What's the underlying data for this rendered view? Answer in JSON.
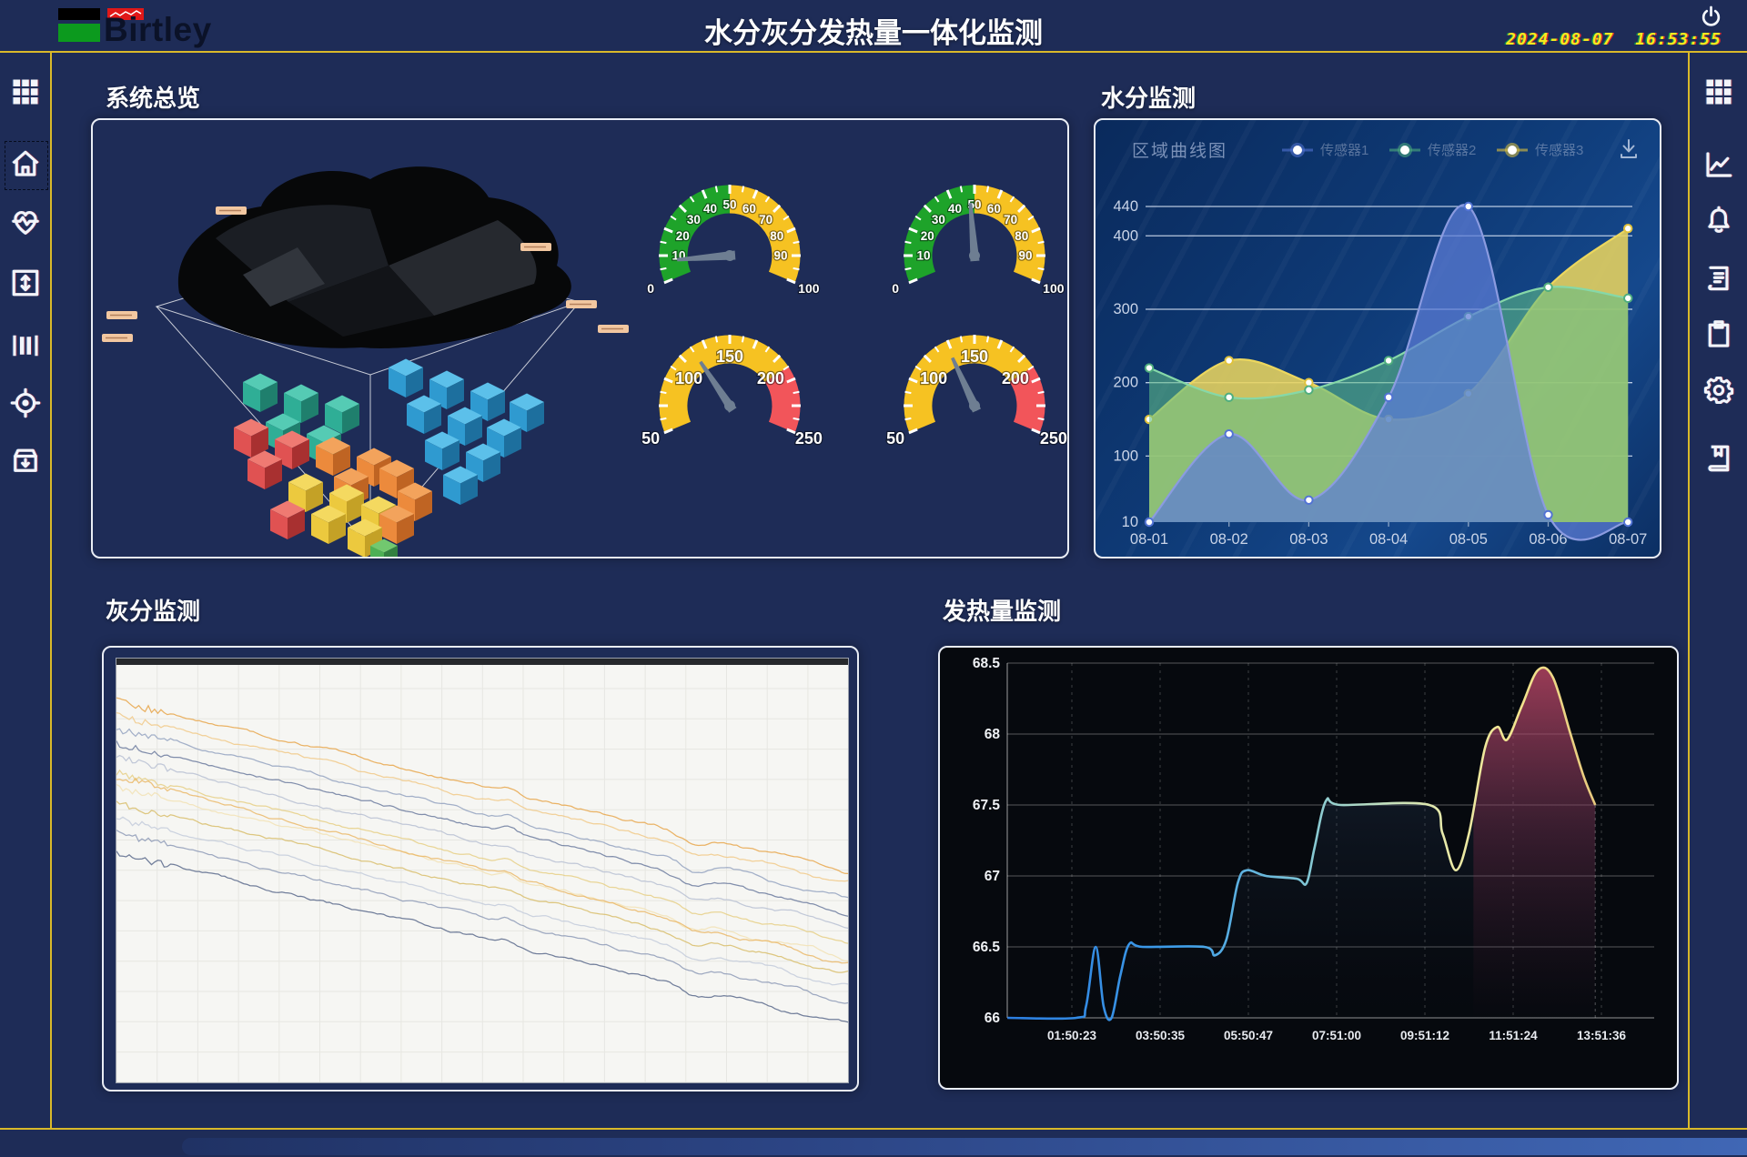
{
  "header": {
    "logo_text": "Birtley",
    "title": "水分灰分发热量一体化监测",
    "date": "2024-08-07",
    "time": "16:53:55",
    "power_icon": "power-icon"
  },
  "left_sidebar": {
    "items": [
      {
        "icon": "grid",
        "name": "apps",
        "active": false
      },
      {
        "icon": "home",
        "name": "home",
        "active": true
      },
      {
        "icon": "heart-pulse",
        "name": "health",
        "active": false
      },
      {
        "icon": "resize-vertical",
        "name": "levels",
        "active": false
      },
      {
        "icon": "bars",
        "name": "gates",
        "active": false
      },
      {
        "icon": "target",
        "name": "calibration",
        "active": false
      },
      {
        "icon": "archive-down",
        "name": "storage",
        "active": false
      }
    ]
  },
  "right_sidebar": {
    "items": [
      {
        "icon": "grid",
        "name": "apps"
      },
      {
        "icon": "line-chart",
        "name": "trends"
      },
      {
        "icon": "bell",
        "name": "alarms"
      },
      {
        "icon": "document",
        "name": "reports"
      },
      {
        "icon": "clipboard",
        "name": "tasks"
      },
      {
        "icon": "gear",
        "name": "settings"
      },
      {
        "icon": "book",
        "name": "records"
      }
    ]
  },
  "panels": {
    "overview": {
      "title": "系统总览"
    },
    "moisture": {
      "title": "水分监测",
      "chart_label": "区域曲线图",
      "download_icon": "download-icon"
    },
    "ash": {
      "title": "灰分监测"
    },
    "calorific": {
      "title": "发热量监测"
    }
  },
  "colors": {
    "accent_yellow": "#d9b92a",
    "clock_yellow": "#f3eb1f",
    "page_bg": "#1e2c57",
    "panel_border": "#e9edf5",
    "gauge_green": "#1ea32a",
    "gauge_yellow": "#f6c222",
    "gauge_red": "#f2555a",
    "needle_gray": "#6e7e92"
  },
  "chart_data": [
    {
      "id": "moisture_area",
      "type": "area",
      "title": "区域曲线图",
      "legend_position": "top-right",
      "grid": true,
      "categories": [
        "08-01",
        "08-02",
        "08-03",
        "08-04",
        "08-05",
        "08-06",
        "08-07"
      ],
      "yticks": [
        10,
        100,
        200,
        300,
        400,
        440
      ],
      "ylim": [
        10,
        455
      ],
      "series": [
        {
          "name": "传感器1",
          "color": "#8b9be0",
          "fill": "rgba(93,125,215,0.72)",
          "marker": "#5273d4",
          "values": [
            10,
            130,
            40,
            180,
            440,
            20,
            10
          ]
        },
        {
          "name": "传感器2",
          "color": "#86d8a8",
          "fill": "rgba(95,190,135,0.58)",
          "marker": "#4fae7e",
          "values": [
            220,
            180,
            190,
            230,
            290,
            330,
            315
          ]
        },
        {
          "name": "传感器3",
          "color": "#ecd75e",
          "fill": "rgba(232,212,95,0.88)",
          "marker": "#e0c23c",
          "values": [
            150,
            230,
            200,
            150,
            185,
            330,
            410
          ]
        }
      ]
    },
    {
      "id": "ash_lines",
      "type": "line",
      "title": "灰分监测",
      "note": "multi-series noisy descending trend lines on white background",
      "bumps": [
        {
          "t": 0.535,
          "amp": -5,
          "w": 0.016
        },
        {
          "t": 0.79,
          "amp": 9,
          "w": 0.025
        }
      ],
      "series": [
        {
          "color": "#e8a64a",
          "start": 0.1,
          "end": 0.5
        },
        {
          "color": "#f1c987",
          "start": 0.13,
          "end": 0.53
        },
        {
          "color": "#93a2bf",
          "start": 0.165,
          "end": 0.565
        },
        {
          "color": "#6b7a9d",
          "start": 0.2,
          "end": 0.6
        },
        {
          "color": "#b7c0d2",
          "start": 0.235,
          "end": 0.635
        },
        {
          "color": "#e6cf85",
          "start": 0.27,
          "end": 0.67
        },
        {
          "color": "#f2e2b4",
          "start": 0.305,
          "end": 0.705
        },
        {
          "color": "#d8bd6a",
          "start": 0.34,
          "end": 0.74
        },
        {
          "color": "#c3cbdb",
          "start": 0.375,
          "end": 0.775
        },
        {
          "color": "#8d9ab6",
          "start": 0.41,
          "end": 0.81
        },
        {
          "color": "#eab766",
          "start": 0.28,
          "end": 0.72
        },
        {
          "color": "#58678a",
          "start": 0.46,
          "end": 0.86
        }
      ]
    },
    {
      "id": "calorific_line",
      "type": "line",
      "title": "发热量监测",
      "categories": [
        "01:50:23",
        "03:50:35",
        "05:50:47",
        "07:51:00",
        "09:51:12",
        "11:51:24",
        "13:51:36"
      ],
      "yticks": [
        66,
        66.5,
        67,
        67.5,
        68,
        68.5
      ],
      "ylim": [
        66,
        68.5
      ],
      "x_start_u": -0.73,
      "points": [
        [
          -0.73,
          66
        ],
        [
          0.05,
          66
        ],
        [
          0.16,
          66.08
        ],
        [
          0.27,
          66.5
        ],
        [
          0.36,
          66.08
        ],
        [
          0.45,
          66.0
        ],
        [
          0.55,
          66.3
        ],
        [
          0.65,
          66.52
        ],
        [
          0.8,
          66.5
        ],
        [
          1.5,
          66.5
        ],
        [
          1.62,
          66.44
        ],
        [
          1.75,
          66.55
        ],
        [
          1.88,
          66.95
        ],
        [
          1.98,
          67.04
        ],
        [
          2.2,
          67.0
        ],
        [
          2.55,
          66.98
        ],
        [
          2.66,
          66.95
        ],
        [
          2.75,
          67.2
        ],
        [
          2.88,
          67.53
        ],
        [
          3.05,
          67.5
        ],
        [
          4.05,
          67.5
        ],
        [
          4.2,
          67.3
        ],
        [
          4.35,
          67.04
        ],
        [
          4.5,
          67.3
        ],
        [
          4.68,
          67.9
        ],
        [
          4.82,
          68.05
        ],
        [
          4.93,
          67.96
        ],
        [
          5.1,
          68.2
        ],
        [
          5.28,
          68.45
        ],
        [
          5.45,
          68.4
        ],
        [
          5.65,
          68.0
        ],
        [
          5.8,
          67.7
        ],
        [
          5.93,
          67.5
        ]
      ]
    },
    {
      "id": "overview_gauges",
      "type": "gauge-set",
      "gauges": [
        {
          "min": 0,
          "max": 100,
          "value": 8,
          "bands": [
            [
              0,
              50,
              "#1ea32a"
            ],
            [
              50,
              100,
              "#f6c222"
            ]
          ],
          "tick_labels": [
            10,
            20,
            30,
            40,
            50,
            60,
            70,
            80,
            90
          ],
          "end_labels": [
            0,
            100
          ]
        },
        {
          "min": 0,
          "max": 100,
          "value": 48,
          "bands": [
            [
              0,
              50,
              "#1ea32a"
            ],
            [
              50,
              100,
              "#f6c222"
            ]
          ],
          "tick_labels": [
            10,
            20,
            30,
            40,
            50,
            60,
            70,
            80,
            90
          ],
          "end_labels": [
            0,
            100
          ]
        },
        {
          "min": 50,
          "max": 250,
          "value": 120,
          "bands": [
            [
              50,
              200,
              "#f6c222"
            ],
            [
              200,
              250,
              "#f2555a"
            ]
          ],
          "tick_labels": [
            100,
            150,
            200
          ],
          "end_labels": [
            50,
            250
          ]
        },
        {
          "min": 50,
          "max": 250,
          "value": 128,
          "bands": [
            [
              50,
              200,
              "#f6c222"
            ],
            [
              200,
              250,
              "#f2555a"
            ]
          ],
          "tick_labels": [
            100,
            150,
            200
          ],
          "end_labels": [
            50,
            250
          ]
        }
      ]
    }
  ]
}
